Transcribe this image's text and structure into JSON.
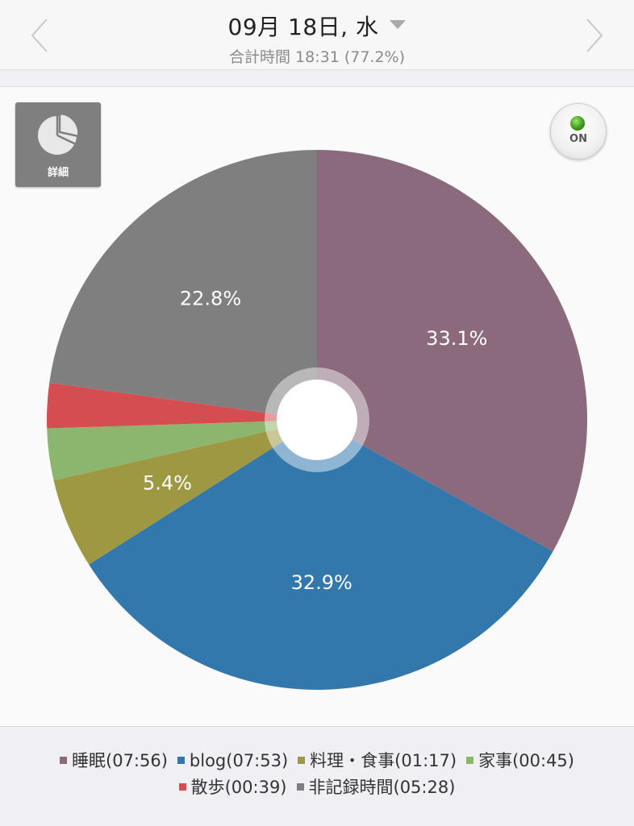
{
  "header": {
    "date": "09月 18日, 水",
    "subtitle": "合計時間 18:31 (77.2%)",
    "prev_icon": "chevron-left-icon",
    "next_icon": "chevron-right-icon",
    "dropdown_icon": "caret-down-icon"
  },
  "detail_button": {
    "label": "詳細",
    "icon": "pie-chart-icon"
  },
  "toggle": {
    "label": "ON",
    "status_color": "#3e9a1a"
  },
  "chart_data": {
    "type": "pie",
    "donut_hole": true,
    "start_angle_deg": 0,
    "direction": "clockwise",
    "slices": [
      {
        "label": "睡眠",
        "legend": "睡眠(07:56)",
        "value": 33.1,
        "color": "#8a6a7c",
        "show_pct": true
      },
      {
        "label": "blog",
        "legend": "blog(07:53)",
        "value": 32.9,
        "color": "#3278ac",
        "show_pct": true
      },
      {
        "label": "料理・食事",
        "legend": "料理・食事(01:17)",
        "value": 5.4,
        "color": "#9f9843",
        "show_pct": true
      },
      {
        "label": "家事",
        "legend": "家事(00:45)",
        "value": 3.1,
        "color": "#8cb56e",
        "show_pct": false
      },
      {
        "label": "散歩",
        "legend": "散歩(00:39)",
        "value": 2.7,
        "color": "#d44e51",
        "show_pct": false
      },
      {
        "label": "非記録時間",
        "legend": "非記録時間(05:28)",
        "value": 22.8,
        "color": "#7f7f7f",
        "show_pct": true
      }
    ],
    "legend_rows": [
      [
        0,
        1,
        2,
        3
      ],
      [
        4,
        5
      ]
    ],
    "legend_placement": "bottom"
  }
}
